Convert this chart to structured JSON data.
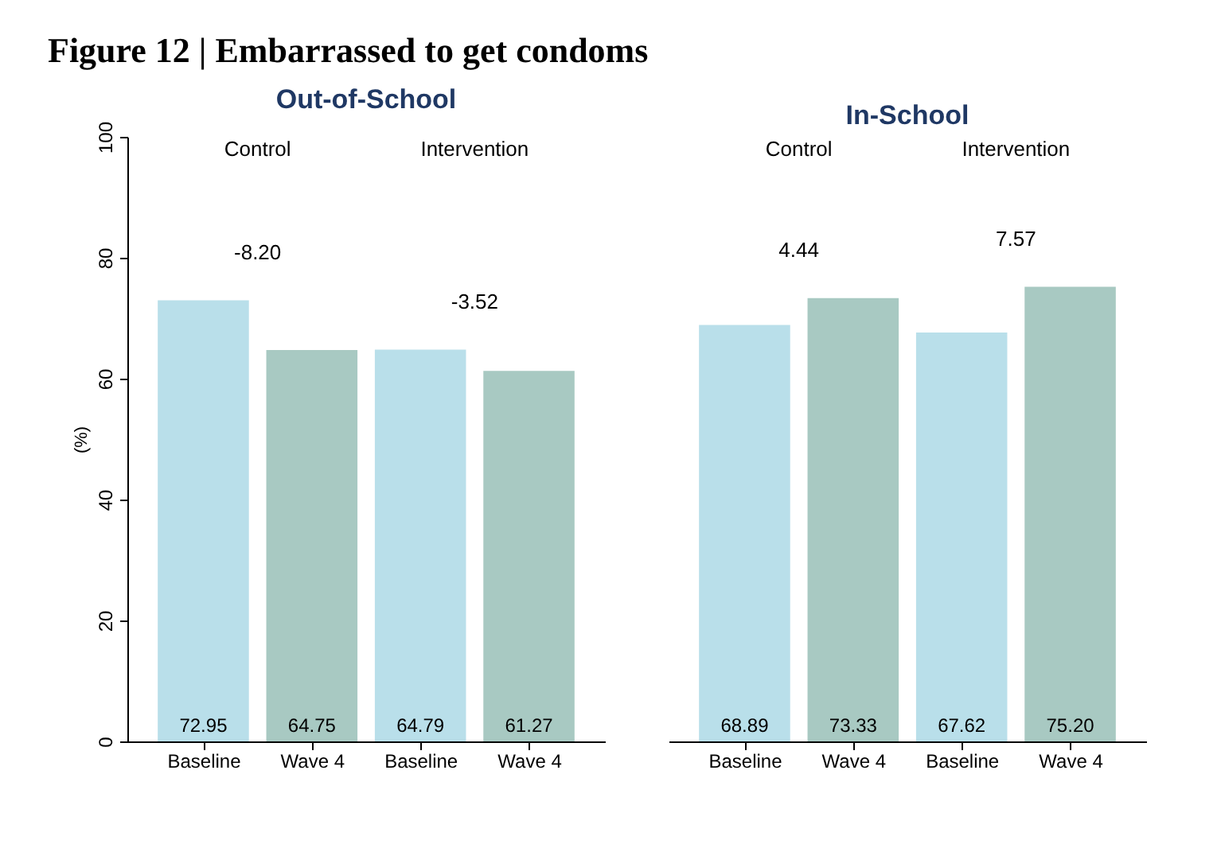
{
  "chart_data": [
    {
      "type": "bar",
      "title": "Figure 12 | Embarrassed to get condoms",
      "subtitle": "Out-of-School",
      "ylabel": "(%)",
      "categories": [
        "Baseline",
        "Wave 4",
        "Baseline",
        "Wave 4"
      ],
      "values": [
        72.95,
        64.75,
        64.79,
        61.27
      ],
      "value_labels": [
        "72.95",
        "64.75",
        "64.79",
        "61.27"
      ],
      "colors": [
        "#b9dfea",
        "#a8c9c2",
        "#b9dfea",
        "#a8c9c2"
      ],
      "annotations": [
        "Control",
        "Intervention",
        "-8.20",
        "-3.52"
      ],
      "ylim": [
        0,
        100
      ],
      "yticks": [
        0,
        20,
        40,
        60,
        80,
        100
      ]
    },
    {
      "type": "bar",
      "subtitle": "In-School",
      "categories": [
        "Baseline",
        "Wave 4",
        "Baseline",
        "Wave 4"
      ],
      "values": [
        68.89,
        73.33,
        67.62,
        75.2
      ],
      "value_labels": [
        "68.89",
        "73.33",
        "67.62",
        "75.20"
      ],
      "colors": [
        "#b9dfea",
        "#a8c9c2",
        "#b9dfea",
        "#a8c9c2"
      ],
      "annotations": [
        "Control",
        "Intervention",
        "4.44",
        "7.57"
      ],
      "ylim": [
        0,
        100
      ],
      "yticks": [
        0,
        20,
        40,
        60,
        80,
        100
      ],
      "tick_labels": "x"
    }
  ]
}
